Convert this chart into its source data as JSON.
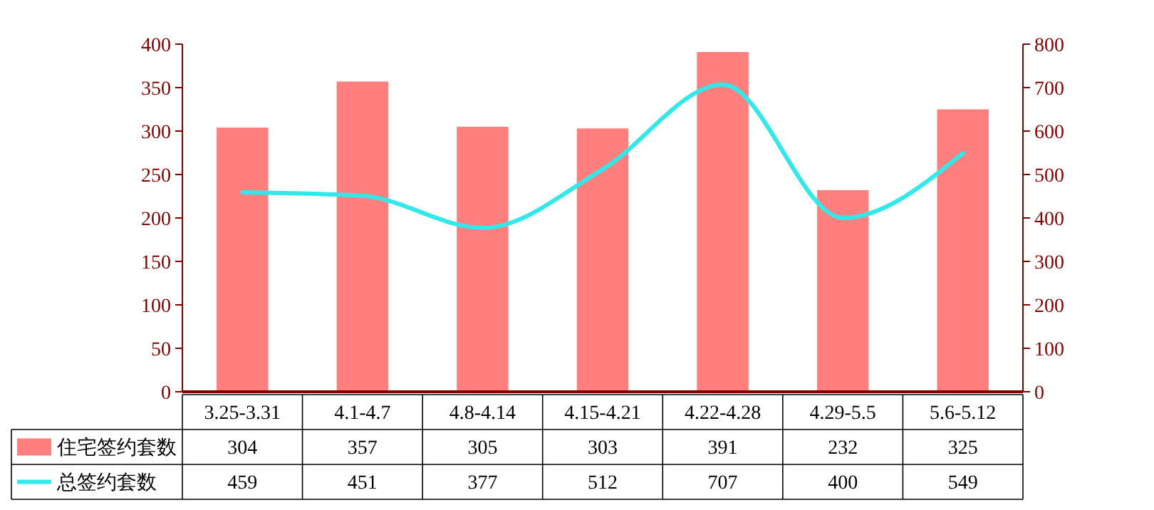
{
  "chart_data": {
    "type": "bar",
    "categories": [
      "3.25-3.31",
      "4.1-4.7",
      "4.8-4.14",
      "4.15-4.21",
      "4.22-4.28",
      "4.29-5.5",
      "5.6-5.12"
    ],
    "series": [
      {
        "name": "住宅签约套数",
        "color": "#ff7f7f",
        "values": [
          304,
          357,
          305,
          303,
          391,
          232,
          325
        ]
      },
      {
        "name": "总签约套数",
        "type": "line",
        "axis": "y2",
        "color": "#33e8e8",
        "values": [
          459,
          451,
          377,
          512,
          707,
          400,
          549
        ]
      }
    ],
    "ylim": [
      0,
      400
    ],
    "yticks": [
      0,
      50,
      100,
      150,
      200,
      250,
      300,
      350,
      400
    ],
    "y2lim": [
      0,
      800
    ],
    "y2ticks": [
      0,
      100,
      200,
      300,
      400,
      500,
      600,
      700,
      800
    ],
    "data_labels": true,
    "legend": "bottom",
    "grid": false,
    "marker": "none",
    "line_style": "solid"
  }
}
